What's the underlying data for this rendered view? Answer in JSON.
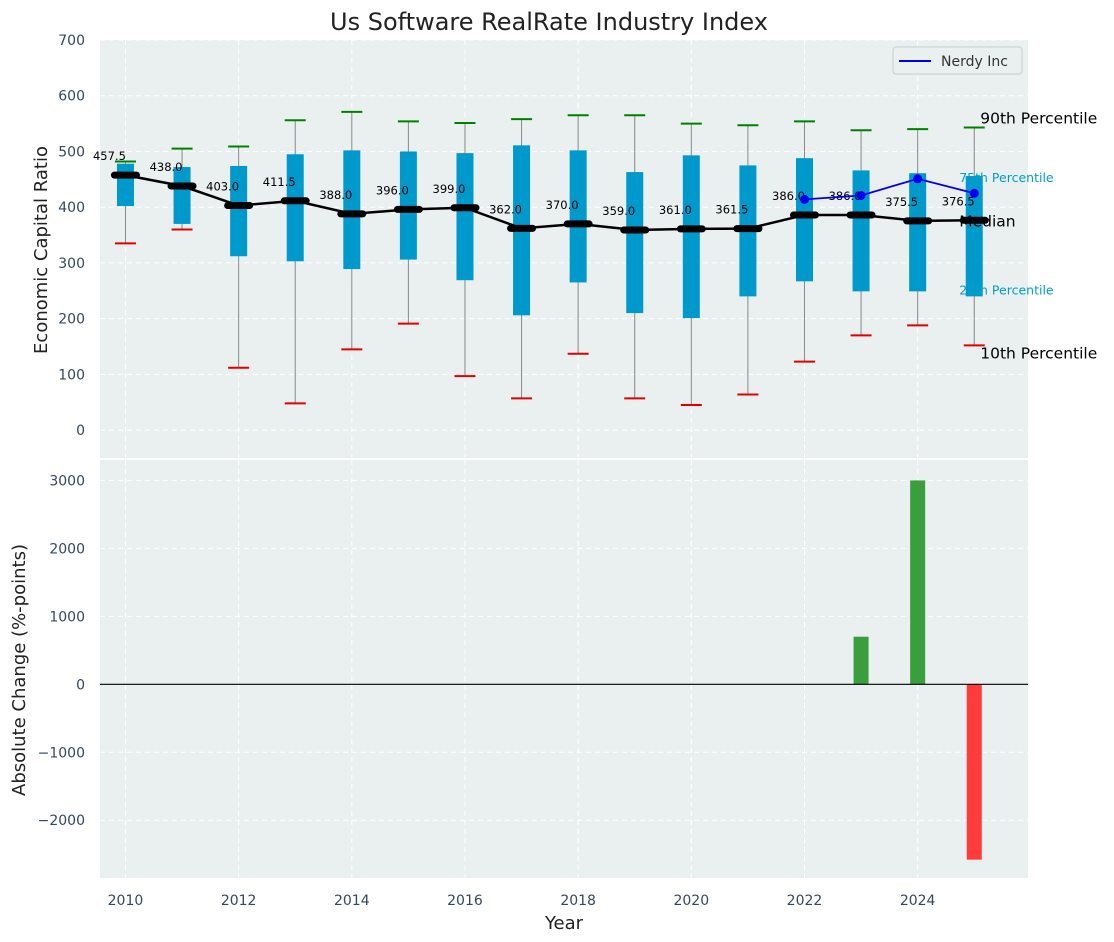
{
  "chart_data": [
    {
      "type": "boxplot",
      "title": "Us Software RealRate Industry Index",
      "xlabel": "",
      "ylabel": "Economic Capital Ratio",
      "ylim": [
        -50,
        700
      ],
      "yticks": [
        0,
        100,
        200,
        300,
        400,
        500,
        600,
        700
      ],
      "grid": true,
      "legend_position": "top-right",
      "years": [
        2010,
        2011,
        2012,
        2013,
        2014,
        2015,
        2016,
        2017,
        2018,
        2019,
        2020,
        2021,
        2022,
        2023,
        2024,
        2025
      ],
      "p10": [
        335,
        360,
        112,
        48,
        145,
        191,
        97,
        57,
        137,
        57,
        45,
        64,
        123,
        170,
        188,
        152
      ],
      "p25": [
        402,
        370,
        312,
        303,
        289,
        306,
        269,
        206,
        265,
        210,
        201,
        240,
        267,
        249,
        249,
        240
      ],
      "median": [
        457.5,
        438.0,
        403.0,
        411.5,
        388.0,
        396.0,
        399.0,
        362.0,
        370.0,
        359.0,
        361.0,
        361.5,
        386.0,
        386.0,
        375.5,
        376.5
      ],
      "median_labels": [
        "457.5",
        "438.0",
        "403.0",
        "411.5",
        "388.0",
        "396.0",
        "399.0",
        "362.0",
        "370.0",
        "359.0",
        "361.0",
        "361.5",
        "386.0",
        "386.0",
        "375.5",
        "376.5"
      ],
      "p75": [
        478,
        472,
        474,
        495,
        502,
        500,
        497,
        511,
        502,
        463,
        493,
        475,
        488,
        466,
        461,
        456
      ],
      "p90": [
        482,
        505,
        509,
        556,
        571,
        554,
        551,
        558,
        565,
        565,
        550,
        547,
        554,
        538,
        540,
        543
      ],
      "company": {
        "name": "Nerdy Inc",
        "years": [
          2022,
          2023,
          2024,
          2025
        ],
        "values": [
          414,
          421,
          451,
          425
        ]
      },
      "annotations": {
        "p90": "90th Percentile",
        "p75": "75th Percentile",
        "median": "Median",
        "p25": "25th Percentile",
        "p10": "10th Percentile"
      },
      "colors": {
        "box": "#0099cc",
        "whisker": "#888888",
        "p90_cap": "#008000",
        "p10_cap": "#e00000",
        "median_line": "#000000",
        "company_line": "#0000ee",
        "annotation_small": "#00a0c6",
        "plot_bg": "#eaeff0"
      }
    },
    {
      "type": "bar",
      "xlabel": "Year",
      "ylabel": "Absolute Change (%-points)",
      "ylim": [
        -2850,
        3300
      ],
      "yticks": [
        -2000,
        -1000,
        0,
        1000,
        2000,
        3000
      ],
      "xlim": [
        2009.55,
        2025.95
      ],
      "xticks": [
        2010,
        2012,
        2014,
        2016,
        2018,
        2020,
        2022,
        2024
      ],
      "grid": true,
      "x": [
        2023,
        2024,
        2025
      ],
      "values": [
        700,
        3000,
        -2580
      ],
      "colors": {
        "positive": "#3a9e3f",
        "negative": "#ff3b3b",
        "zero_line": "#000000"
      }
    }
  ]
}
